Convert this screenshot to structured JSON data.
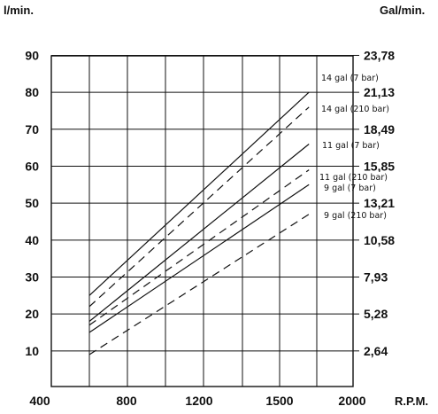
{
  "chart_data": {
    "type": "line",
    "left_unit": "l/min.",
    "right_unit": "Gal/min.",
    "x_unit": "R.P.M.",
    "xlim": [
      400,
      2000
    ],
    "ylim": [
      0,
      90
    ],
    "x_ticks": [
      400,
      800,
      1200,
      1500,
      2000
    ],
    "x_tick_labels": [
      "400",
      "800",
      "1200",
      "1500",
      "2000"
    ],
    "y_ticks": [
      10,
      20,
      30,
      40,
      50,
      60,
      70,
      80,
      90
    ],
    "y_tick_labels": [
      "10",
      "20",
      "30",
      "40",
      "50",
      "60",
      "70",
      "80",
      "90"
    ],
    "y2_ticks": [
      10,
      20,
      30,
      40,
      50,
      60,
      70,
      80,
      90
    ],
    "y2_tick_labels": [
      "2,64",
      "5,28",
      "7,93",
      "10,58",
      "13,21",
      "15,85",
      "18,49",
      "21,13",
      "23,78"
    ],
    "grid": true,
    "series": [
      {
        "name": "14 gal (7 bar)",
        "style": "solid",
        "x": [
          600,
          1700
        ],
        "y": [
          25,
          80
        ]
      },
      {
        "name": "14 gal (210 bar)",
        "style": "dashed",
        "x": [
          600,
          1700
        ],
        "y": [
          22,
          76
        ]
      },
      {
        "name": "11 gal (7 bar)",
        "style": "solid",
        "x": [
          600,
          1700
        ],
        "y": [
          18,
          66
        ]
      },
      {
        "name": "11 gal (210 bar)",
        "style": "dashed",
        "x": [
          600,
          1700
        ],
        "y": [
          17,
          59
        ]
      },
      {
        "name": "9 gal (7 bar)",
        "style": "solid",
        "x": [
          600,
          1700
        ],
        "y": [
          15,
          55
        ]
      },
      {
        "name": "9 gal (210 bar)",
        "style": "dashed",
        "x": [
          600,
          1700
        ],
        "y": [
          9,
          47
        ]
      }
    ]
  }
}
